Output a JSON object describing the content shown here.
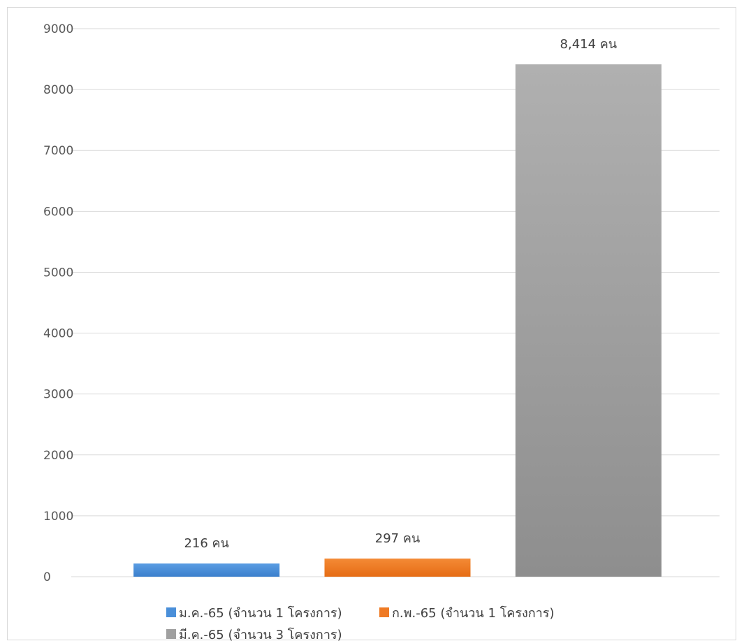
{
  "chart_data": {
    "type": "bar",
    "categories": [
      "ม.ค.-65 (จำนวน 1 โครงการ)",
      "ก.พ.-65 (จำนวน 1 โครงการ)",
      "มี.ค.-65 (จำนวน 3 โครงการ)"
    ],
    "values": [
      216,
      297,
      8414
    ],
    "data_labels": [
      "216 คน",
      "297 คน",
      "8,414 คน"
    ],
    "colors": [
      "#4a8fd9",
      "#ef7a24",
      "#a0a0a0"
    ],
    "y_ticks": [
      "0",
      "1000",
      "2000",
      "3000",
      "4000",
      "5000",
      "6000",
      "7000",
      "8000",
      "9000"
    ],
    "ylim": [
      0,
      9000
    ],
    "grid": true,
    "legend_position": "bottom",
    "legend": [
      "ม.ค.-65 (จำนวน 1 โครงการ)",
      "ก.พ.-65 (จำนวน 1 โครงการ)",
      "มี.ค.-65 (จำนวน 3 โครงการ)"
    ]
  }
}
